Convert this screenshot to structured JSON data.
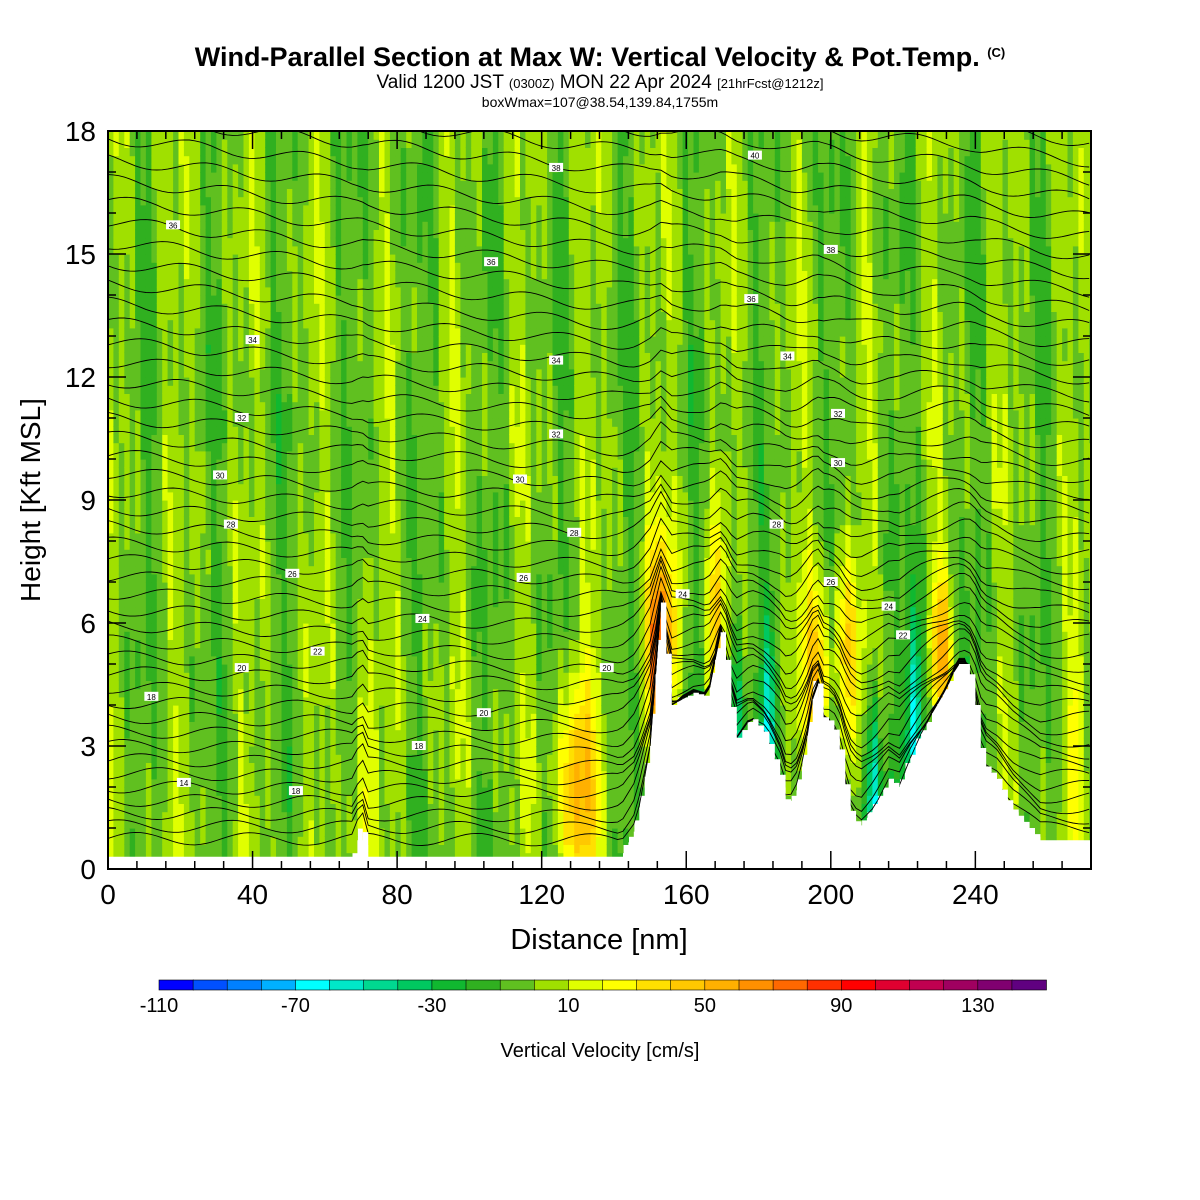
{
  "header": {
    "title": "Wind-Parallel Section at Max W: Vertical Velocity & Pot.Temp.",
    "copyright": "(C)",
    "valid_prefix": "Valid 1200 JST",
    "valid_utc": "(0300Z)",
    "valid_date": "MON 22 Apr 2024",
    "forecast": "[21hrFcst@1212z]",
    "box_info": "boxWmax=107@38.54,139.84,1755m"
  },
  "chart_data": {
    "type": "heatmap",
    "xlabel": "Distance [nm]",
    "ylabel": "Height [Kft MSL]",
    "xlim": [
      0,
      272
    ],
    "ylim": [
      0,
      18
    ],
    "x_ticks": [
      "0",
      "40",
      "80",
      "120",
      "160",
      "200",
      "240"
    ],
    "y_ticks": [
      "0",
      "3",
      "6",
      "9",
      "12",
      "15",
      "18"
    ],
    "colorbar": {
      "label": "Vertical Velocity [cm/s]",
      "min": -110,
      "max": 150,
      "step": 10,
      "tick_labels": [
        "-110",
        "-70",
        "-30",
        "10",
        "50",
        "90",
        "130"
      ],
      "colors": [
        "#0000ff",
        "#0050ff",
        "#0080ff",
        "#00b0ff",
        "#00ffff",
        "#00e8c8",
        "#00d890",
        "#00c860",
        "#10b830",
        "#30b020",
        "#60c020",
        "#a0e000",
        "#e0ff00",
        "#ffff00",
        "#ffe000",
        "#ffc800",
        "#ffb000",
        "#ff9000",
        "#ff6800",
        "#ff3000",
        "#ff0000",
        "#e00030",
        "#c00050",
        "#a00060",
        "#800070",
        "#600080"
      ]
    },
    "terrain": [
      [
        0,
        0.3
      ],
      [
        68,
        0.3
      ],
      [
        70,
        1.1
      ],
      [
        72,
        0.3
      ],
      [
        142,
        0.3
      ],
      [
        146,
        1
      ],
      [
        150,
        3
      ],
      [
        153,
        6.5
      ],
      [
        156,
        4
      ],
      [
        162,
        4.3
      ],
      [
        166,
        4.2
      ],
      [
        170,
        6
      ],
      [
        172,
        4.2
      ],
      [
        174,
        3.2
      ],
      [
        178,
        3.7
      ],
      [
        182,
        3.3
      ],
      [
        186,
        2.3
      ],
      [
        188,
        1.5
      ],
      [
        191,
        2
      ],
      [
        194,
        3.5
      ],
      [
        196,
        4.8
      ],
      [
        198,
        3.7
      ],
      [
        200,
        3.6
      ],
      [
        202,
        3.2
      ],
      [
        205,
        1.5
      ],
      [
        208,
        1
      ],
      [
        212,
        1.5
      ],
      [
        216,
        2.2
      ],
      [
        219,
        2
      ],
      [
        222,
        2.7
      ],
      [
        225,
        3.3
      ],
      [
        228,
        3.8
      ],
      [
        232,
        4.4
      ],
      [
        235,
        5
      ],
      [
        238,
        5
      ],
      [
        240,
        4
      ],
      [
        242,
        2.6
      ],
      [
        246,
        2.2
      ],
      [
        250,
        1.5
      ],
      [
        258,
        0.7
      ],
      [
        272,
        0.7
      ]
    ],
    "theta_contour_labels": [
      {
        "x": 18,
        "y": 15.7,
        "v": "36"
      },
      {
        "x": 124,
        "y": 17.1,
        "v": "38"
      },
      {
        "x": 179,
        "y": 17.4,
        "v": "40"
      },
      {
        "x": 106,
        "y": 14.8,
        "v": "36"
      },
      {
        "x": 200,
        "y": 15.1,
        "v": "38"
      },
      {
        "x": 178,
        "y": 13.9,
        "v": "36"
      },
      {
        "x": 40,
        "y": 12.9,
        "v": "34"
      },
      {
        "x": 124,
        "y": 12.4,
        "v": "34"
      },
      {
        "x": 188,
        "y": 12.5,
        "v": "34"
      },
      {
        "x": 37,
        "y": 11.0,
        "v": "32"
      },
      {
        "x": 124,
        "y": 10.6,
        "v": "32"
      },
      {
        "x": 202,
        "y": 11.1,
        "v": "32"
      },
      {
        "x": 31,
        "y": 9.6,
        "v": "30"
      },
      {
        "x": 114,
        "y": 9.5,
        "v": "30"
      },
      {
        "x": 202,
        "y": 9.9,
        "v": "30"
      },
      {
        "x": 34,
        "y": 8.4,
        "v": "28"
      },
      {
        "x": 129,
        "y": 8.2,
        "v": "28"
      },
      {
        "x": 185,
        "y": 8.4,
        "v": "28"
      },
      {
        "x": 51,
        "y": 7.2,
        "v": "26"
      },
      {
        "x": 115,
        "y": 7.1,
        "v": "26"
      },
      {
        "x": 200,
        "y": 7.0,
        "v": "26"
      },
      {
        "x": 87,
        "y": 6.1,
        "v": "24"
      },
      {
        "x": 159,
        "y": 6.7,
        "v": "24"
      },
      {
        "x": 216,
        "y": 6.4,
        "v": "24"
      },
      {
        "x": 58,
        "y": 5.3,
        "v": "22"
      },
      {
        "x": 220,
        "y": 5.7,
        "v": "22"
      },
      {
        "x": 37,
        "y": 4.9,
        "v": "20"
      },
      {
        "x": 104,
        "y": 3.8,
        "v": "20"
      },
      {
        "x": 138,
        "y": 4.9,
        "v": "20"
      },
      {
        "x": 12,
        "y": 4.2,
        "v": "18"
      },
      {
        "x": 86,
        "y": 3.0,
        "v": "18"
      },
      {
        "x": 21,
        "y": 2.1,
        "v": "14"
      },
      {
        "x": 52,
        "y": 1.9,
        "v": "18"
      }
    ]
  }
}
